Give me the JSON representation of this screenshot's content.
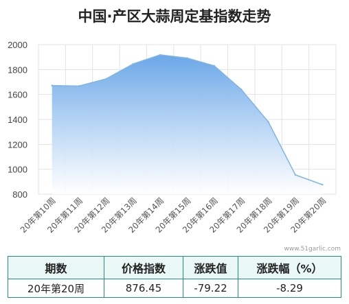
{
  "title": "中国·产区大蒜周定基指数走势",
  "watermark": "www.51garlic.com",
  "colors": {
    "line": "#7fb4e6",
    "fill_top": "#6aa7e8",
    "fill_bottom": "#ffffff",
    "grid": "#e3e3e3",
    "table_border": "#1e8f82",
    "table_header_bg": "#e9f7f5"
  },
  "chart_data": {
    "type": "area",
    "title": "中国·产区大蒜周定基指数走势",
    "xlabel": "",
    "ylabel": "",
    "x": [
      "20年第10周",
      "20年第11周",
      "20年第12周",
      "20年第13周",
      "20年第14周",
      "20年第15周",
      "20年第16周",
      "20年第17周",
      "20年第18周",
      "20年第19周",
      "20年第20周"
    ],
    "values": [
      1672,
      1668,
      1725,
      1845,
      1918,
      1892,
      1830,
      1640,
      1380,
      955,
      876.45
    ],
    "ylim": [
      800,
      2000
    ],
    "yticks": [
      800,
      1000,
      1200,
      1400,
      1600,
      1800,
      2000
    ],
    "grid": true,
    "legend": "none"
  },
  "table": {
    "headers": [
      "期数",
      "价格指数",
      "涨跌值",
      "涨跌幅（%）"
    ],
    "row": [
      "20年第20周",
      "876.45",
      "-79.22",
      "-8.29"
    ]
  }
}
